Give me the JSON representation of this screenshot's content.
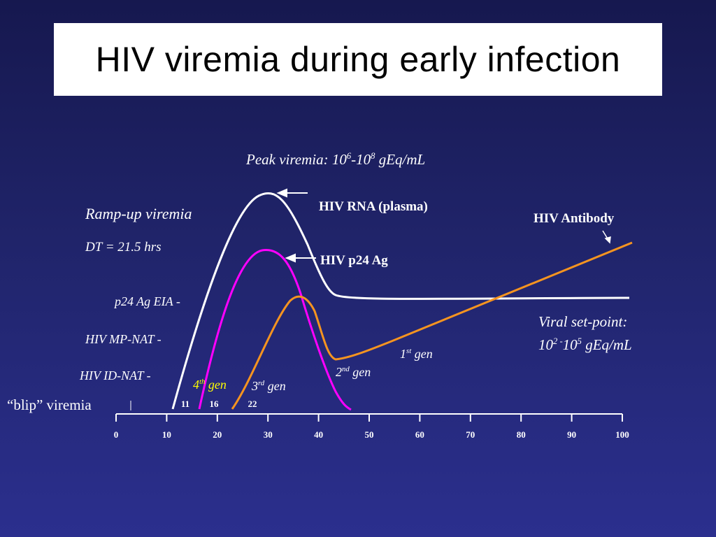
{
  "slide": {
    "title": "HIV viremia during early infection"
  },
  "annotations": {
    "peak_prefix": "Peak viremia: 10",
    "peak_sup1": "6",
    "peak_mid": "-10",
    "peak_sup2": "8",
    "peak_suffix": " gEq/mL",
    "ramp_up": "Ramp-up viremia",
    "doubling_time": "DT = 21.5 hrs",
    "setpoint_line1": "Viral set-point:",
    "setpoint_pre": "10",
    "setpoint_sup1": "2 -",
    "setpoint_mid": "10",
    "setpoint_sup2": "5",
    "setpoint_suffix": " gEq/mL",
    "blip": "“blip” viremia"
  },
  "assays": {
    "p24_eia": "p24 Ag EIA -",
    "mp_nat": "HIV MP-NAT -",
    "id_nat": "HIV ID-NAT -"
  },
  "curve_labels": {
    "rna": "HIV RNA (plasma)",
    "p24": "HIV p24 Ag",
    "antibody": "HIV Antibody"
  },
  "generations": {
    "g4_num": "4",
    "g4_sup": "th",
    "g4_word": " gen",
    "g3_num": "3",
    "g3_sup": "rd",
    "g3_word": " gen",
    "g2_num": "2",
    "g2_sup": "nd",
    "g2_word": " gen",
    "g1_num": "1",
    "g1_sup": "st",
    "g1_word": " gen",
    "day11": "11",
    "day16": "16",
    "day22": "22"
  },
  "axis": {
    "ticks": [
      "0",
      "10",
      "20",
      "30",
      "40",
      "50",
      "60",
      "70",
      "80",
      "90",
      "100"
    ]
  },
  "colors": {
    "rna": "#ffffff",
    "p24": "#ff00ff",
    "antibody": "#f59420",
    "fourth_gen": "#ffff00",
    "title_bg": "#ffffff"
  }
}
